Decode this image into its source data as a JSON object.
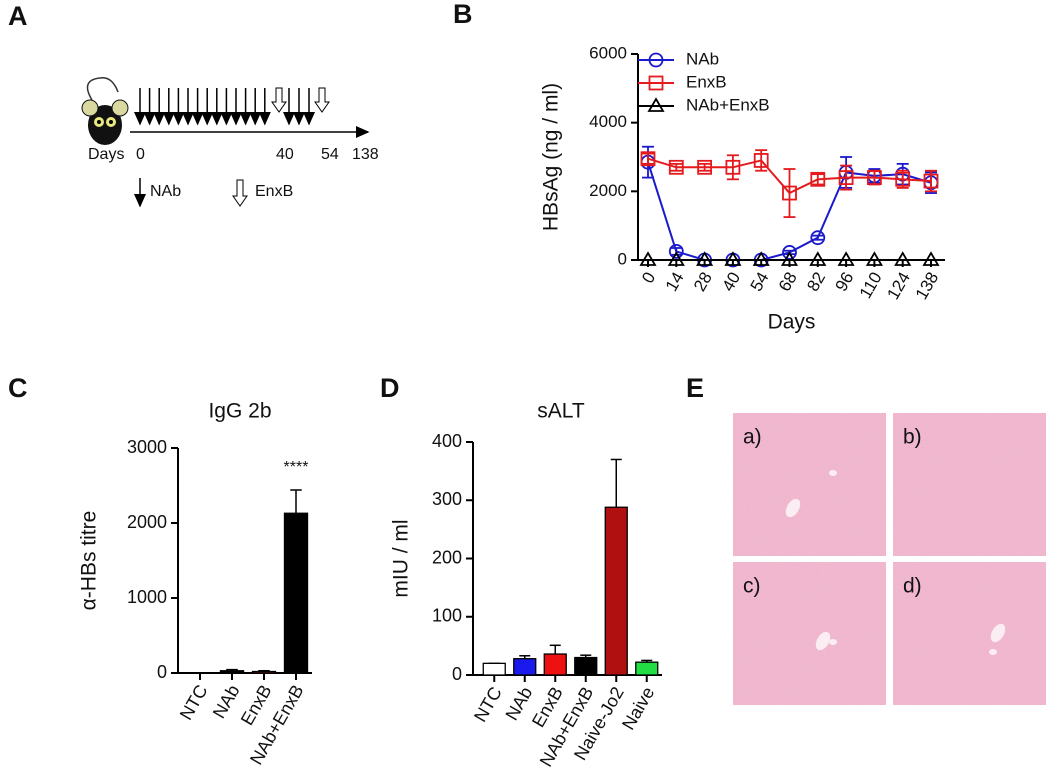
{
  "panel_labels": [
    "A",
    "B",
    "C",
    "D",
    "E"
  ],
  "schedule": {
    "axis_label": "Days",
    "ticks": [
      "0",
      "40",
      "54",
      "138"
    ],
    "legend": [
      "NAb",
      "EnxB"
    ]
  },
  "chart_data": [
    {
      "type": "line",
      "xlabel": "Days",
      "ylabel": "HBsAg (ng / ml)",
      "categories": [
        "0",
        "14",
        "28",
        "40",
        "54",
        "68",
        "82",
        "96",
        "110",
        "124",
        "138"
      ],
      "ylim": [
        0,
        6000
      ],
      "yticks": [
        0,
        2000,
        4000,
        6000
      ],
      "series": [
        {
          "name": "NAb",
          "color": "#1a1acc",
          "marker": "circle",
          "values": [
            2850,
            250,
            0,
            0,
            0,
            220,
            650,
            2550,
            2450,
            2500,
            2250
          ],
          "errors": [
            450,
            100,
            0,
            0,
            0,
            50,
            60,
            450,
            200,
            300,
            300
          ]
        },
        {
          "name": "EnxB",
          "color": "#e41a1c",
          "marker": "square",
          "values": [
            2950,
            2700,
            2700,
            2700,
            2900,
            1950,
            2350,
            2400,
            2400,
            2350,
            2300
          ],
          "errors": [
            150,
            100,
            100,
            350,
            300,
            700,
            150,
            350,
            200,
            250,
            300
          ]
        },
        {
          "name": "NAb+EnxB",
          "color": "#000000",
          "marker": "triangle",
          "values": [
            0,
            0,
            0,
            0,
            0,
            0,
            0,
            0,
            0,
            0,
            0
          ]
        }
      ]
    },
    {
      "type": "bar",
      "title": "IgG 2b",
      "ylabel": "α-HBs titre",
      "annotation": "****",
      "categories": [
        "NTC",
        "NAb",
        "EnxB",
        "NAb+EnxB"
      ],
      "values": [
        0,
        30,
        20,
        2130
      ],
      "errors": [
        0,
        15,
        10,
        310
      ],
      "colors": [
        "#ffffff",
        "#000000",
        "#e41a1c",
        "#000000"
      ],
      "ylim": [
        0,
        3000
      ],
      "yticks": [
        0,
        1000,
        2000,
        3000
      ]
    },
    {
      "type": "bar",
      "title": "sALT",
      "ylabel": "mIU / ml",
      "categories": [
        "NTC",
        "NAb",
        "EnxB",
        "NAb+EnxB",
        "Naive-Jo2",
        "Naive"
      ],
      "values": [
        20,
        28,
        36,
        30,
        288,
        22
      ],
      "errors": [
        0,
        5,
        15,
        4,
        82,
        3
      ],
      "colors": [
        "#ffffff",
        "#1a1aee",
        "#ee1111",
        "#000000",
        "#b01010",
        "#22dd44"
      ],
      "ylim": [
        0,
        400
      ],
      "yticks": [
        0,
        100,
        200,
        300,
        400
      ]
    }
  ],
  "histology": {
    "labels": [
      "a)",
      "b)",
      "c)",
      "d)"
    ]
  }
}
